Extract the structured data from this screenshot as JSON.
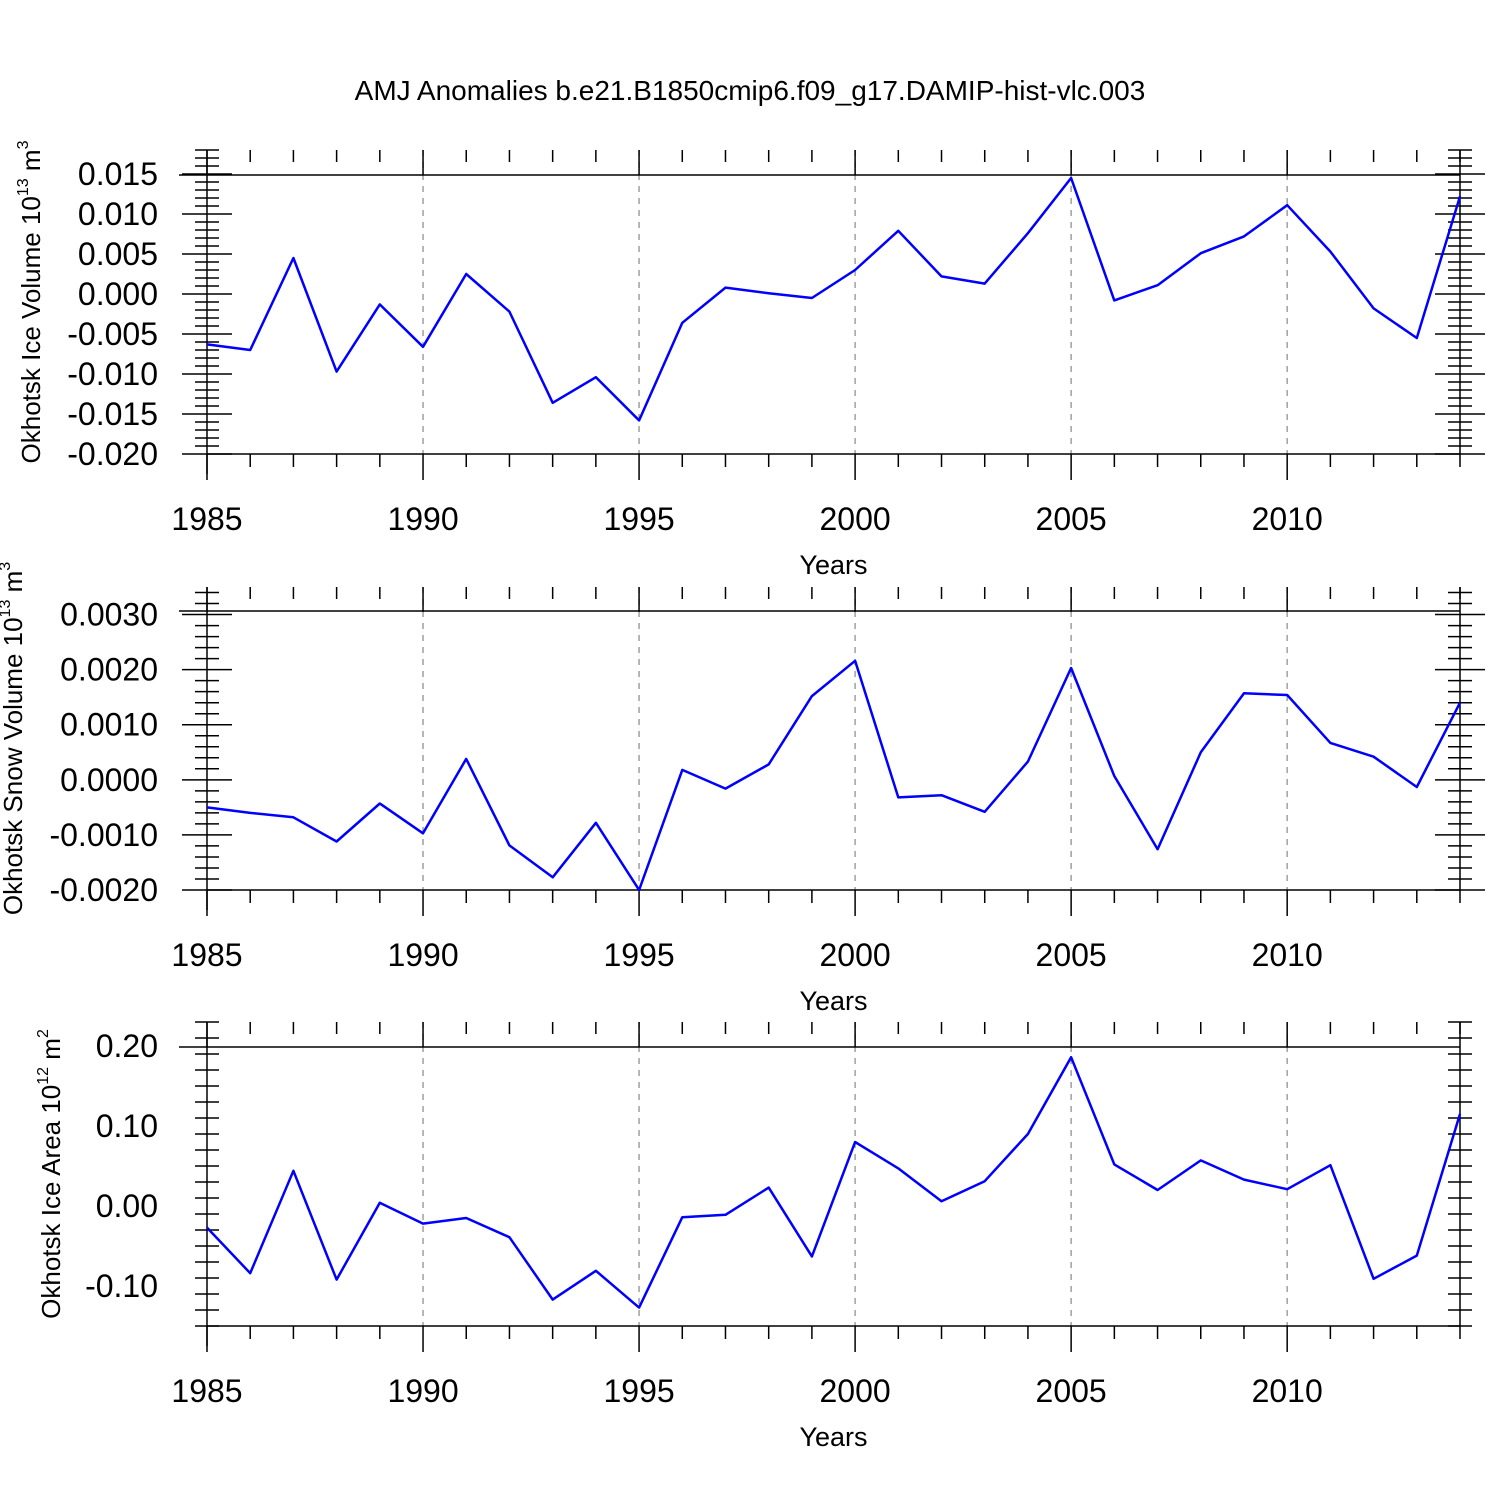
{
  "figure_title": "AMJ Anomalies b.e21.B1850cmip6.f09_g17.DAMIP-hist-vlc.003",
  "colors": {
    "series": "#0000ff",
    "axis": "#000000",
    "grid": "#a0a0a0"
  },
  "chart_data": [
    {
      "type": "line",
      "title": "AMJ Anomalies b.e21.B1850cmip6.f09_g17.DAMIP-hist-vlc.003",
      "xlabel": "Years",
      "ylabel": {
        "text": "Okhotsk Ice Volume 10",
        "exp": "13",
        "unit": " m",
        "unit_exp": "3"
      },
      "xlim": [
        1985,
        2014
      ],
      "ylim": [
        -0.02,
        0.018
      ],
      "yticks": [
        -0.02,
        -0.015,
        -0.01,
        -0.005,
        0.0,
        0.005,
        0.01,
        0.015
      ],
      "ytick_labels": [
        "-0.020",
        "-0.015",
        "-0.010",
        "-0.005",
        "0.000",
        "0.005",
        "0.010",
        "0.015"
      ],
      "xticks": [
        1985,
        1990,
        1995,
        2000,
        2005,
        2010
      ],
      "xtick_labels": [
        "1985",
        "1990",
        "1995",
        "2000",
        "2005",
        "2010"
      ],
      "grid": "vertical dashed at major x ticks",
      "x": [
        1985,
        1986,
        1987,
        1988,
        1989,
        1990,
        1991,
        1992,
        1993,
        1994,
        1995,
        1996,
        1997,
        1998,
        1999,
        2000,
        2001,
        2002,
        2003,
        2004,
        2005,
        2006,
        2007,
        2008,
        2009,
        2010,
        2011,
        2012,
        2013,
        2014
      ],
      "series": [
        {
          "color": "#0000ff",
          "values": [
            -0.0063,
            -0.007,
            0.0045,
            -0.0097,
            -0.0013,
            -0.0066,
            0.0025,
            -0.0022,
            -0.0136,
            -0.0104,
            -0.0158,
            -0.0036,
            0.0008,
            0.0001,
            -0.0005,
            0.003,
            0.0079,
            0.0022,
            0.0013,
            0.0076,
            0.0145,
            -0.0008,
            0.0011,
            0.0051,
            0.0072,
            0.0111,
            0.0053,
            -0.0018,
            -0.0055,
            0.0122
          ]
        }
      ]
    },
    {
      "type": "line",
      "xlabel": "Years",
      "ylabel": {
        "text": "Okhotsk Snow Volume 10",
        "exp": "13",
        "unit": " m",
        "unit_exp": "3"
      },
      "xlim": [
        1985,
        2014
      ],
      "ylim": [
        -0.002,
        0.0035
      ],
      "yticks": [
        -0.002,
        -0.001,
        0.0,
        0.001,
        0.002,
        0.003
      ],
      "ytick_labels": [
        "-0.0020",
        "-0.0010",
        "0.0000",
        "0.0010",
        "0.0020",
        "0.0030"
      ],
      "xticks": [
        1985,
        1990,
        1995,
        2000,
        2005,
        2010
      ],
      "xtick_labels": [
        "1985",
        "1990",
        "1995",
        "2000",
        "2005",
        "2010"
      ],
      "grid": "vertical dashed at major x ticks",
      "x": [
        1985,
        1986,
        1987,
        1988,
        1989,
        1990,
        1991,
        1992,
        1993,
        1994,
        1995,
        1996,
        1997,
        1998,
        1999,
        2000,
        2001,
        2002,
        2003,
        2004,
        2005,
        2006,
        2007,
        2008,
        2009,
        2010,
        2011,
        2012,
        2013,
        2014
      ],
      "series": [
        {
          "color": "#0000ff",
          "values": [
            -0.0005,
            -0.0006,
            -0.00068,
            -0.00112,
            -0.00043,
            -0.00097,
            0.00038,
            -0.00119,
            -0.00177,
            -0.00078,
            -0.002,
            0.00018,
            -0.00016,
            0.00028,
            0.00152,
            0.00216,
            -0.00032,
            -0.00028,
            -0.00058,
            0.00033,
            0.00203,
            7e-05,
            -0.00126,
            0.0005,
            0.00157,
            0.00154,
            0.00067,
            0.00042,
            -0.00013,
            0.0014
          ]
        }
      ]
    },
    {
      "type": "line",
      "xlabel": "Years",
      "ylabel": {
        "text": "Okhotsk Ice Area 10",
        "exp": "12",
        "unit": " m",
        "unit_exp": "2"
      },
      "xlim": [
        1985,
        2014
      ],
      "ylim": [
        -0.15,
        0.23
      ],
      "yticks": [
        -0.1,
        0.0,
        0.1,
        0.2
      ],
      "ytick_labels": [
        "-0.10",
        "0.00",
        "0.10",
        "0.20"
      ],
      "xticks": [
        1985,
        1990,
        1995,
        2000,
        2005,
        2010
      ],
      "xtick_labels": [
        "1985",
        "1990",
        "1995",
        "2000",
        "2005",
        "2010"
      ],
      "grid": "vertical dashed at major x ticks",
      "x": [
        1985,
        1986,
        1987,
        1988,
        1989,
        1990,
        1991,
        1992,
        1993,
        1994,
        1995,
        1996,
        1997,
        1998,
        1999,
        2000,
        2001,
        2002,
        2003,
        2004,
        2005,
        2006,
        2007,
        2008,
        2009,
        2010,
        2011,
        2012,
        2013,
        2014
      ],
      "series": [
        {
          "color": "#0000ff",
          "values": [
            -0.027,
            -0.084,
            0.044,
            -0.092,
            0.004,
            -0.022,
            -0.015,
            -0.039,
            -0.117,
            -0.081,
            -0.127,
            -0.014,
            -0.011,
            0.023,
            -0.063,
            0.08,
            0.047,
            0.006,
            0.031,
            0.09,
            0.186,
            0.052,
            0.02,
            0.057,
            0.033,
            0.021,
            0.051,
            -0.091,
            -0.062,
            0.115
          ]
        }
      ]
    }
  ]
}
